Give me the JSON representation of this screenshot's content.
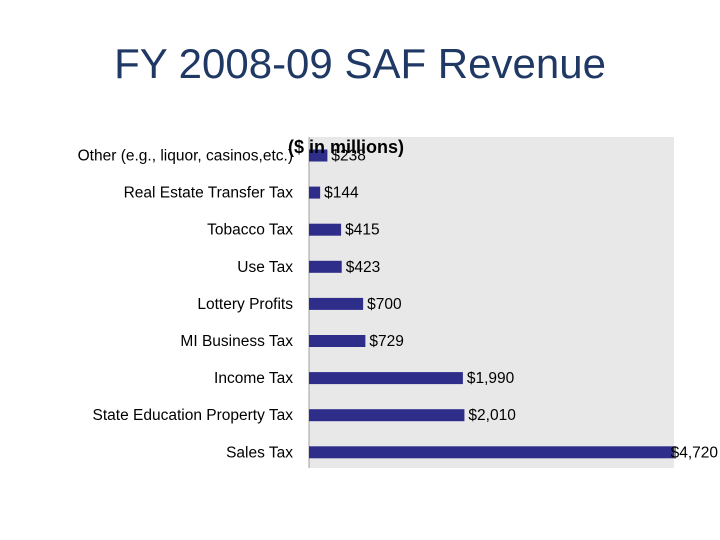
{
  "slide": {
    "title": "FY 2008-09 SAF Revenue"
  },
  "chart_data": {
    "type": "bar",
    "orientation": "horizontal",
    "subtitle": "($ in millions)",
    "categories": [
      "Other (e.g., liquor, casinos,etc.)",
      "Real Estate Transfer Tax",
      "Tobacco Tax",
      "Use Tax",
      "Lottery Profits",
      "MI Business Tax",
      "Income Tax",
      "State Education Property Tax",
      "Sales Tax"
    ],
    "values": [
      238,
      144,
      415,
      423,
      700,
      729,
      1990,
      2010,
      4720
    ],
    "data_labels": [
      "$238",
      "$144",
      "$415",
      "$423",
      "$700",
      "$729",
      "$1,990",
      "$2,010",
      "$4,720"
    ],
    "xlim": [
      0,
      4720
    ],
    "grid": false,
    "legend": "none",
    "colors": {
      "bar": "#2e2e8a",
      "plot_background": "#e8e8e8",
      "title": "#1f3864"
    }
  }
}
